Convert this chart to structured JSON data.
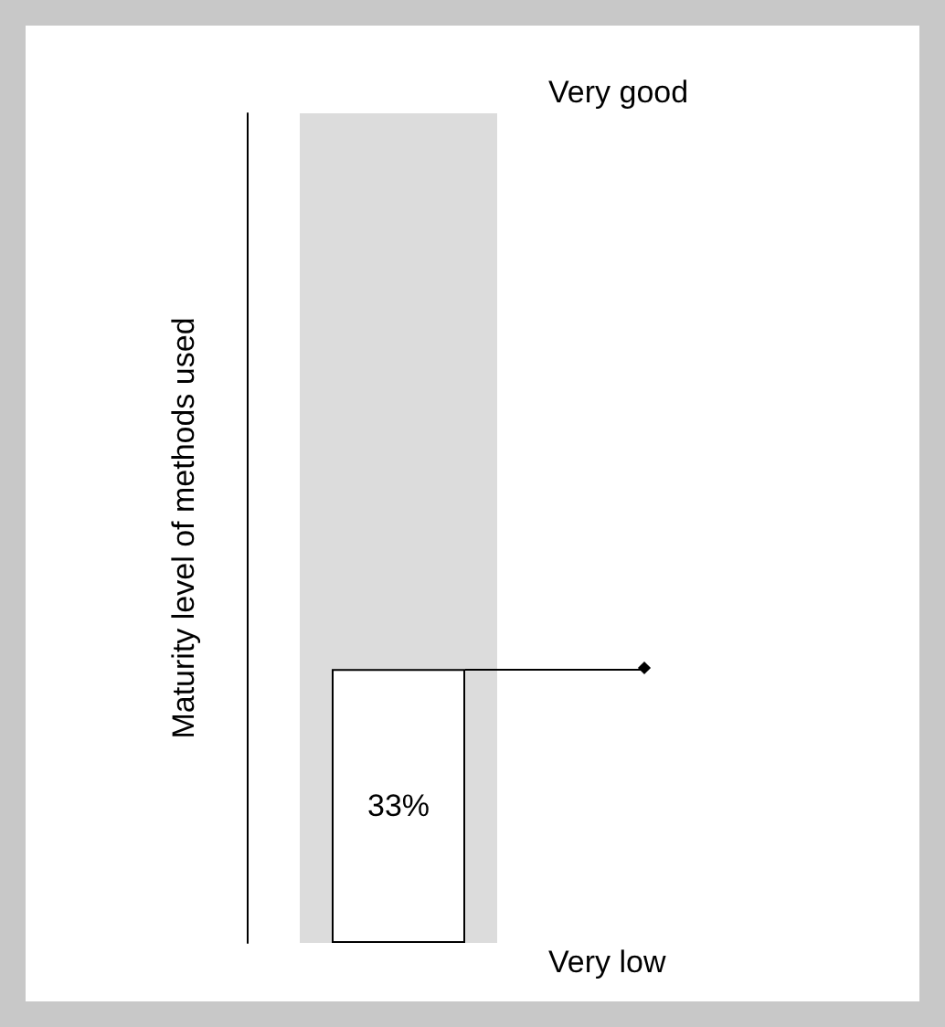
{
  "chart_data": {
    "type": "bar",
    "categories": [
      null
    ],
    "values": [
      33
    ],
    "value_labels": [
      "33%"
    ],
    "color": "#ffffff",
    "ylabel": "Maturity level of methods used",
    "ylim": [
      0,
      100
    ],
    "tick_labels": false,
    "grid": false,
    "bands": [
      {
        "axis": "y",
        "from": 0,
        "to": 100,
        "color": "#dcdcdc"
      }
    ],
    "ref_lines": [
      {
        "axis": "y",
        "value": 33,
        "line_style": "solid",
        "color": "#000000"
      }
    ],
    "marker": "diamond",
    "annotations": [
      "Very good",
      "Very low"
    ]
  }
}
